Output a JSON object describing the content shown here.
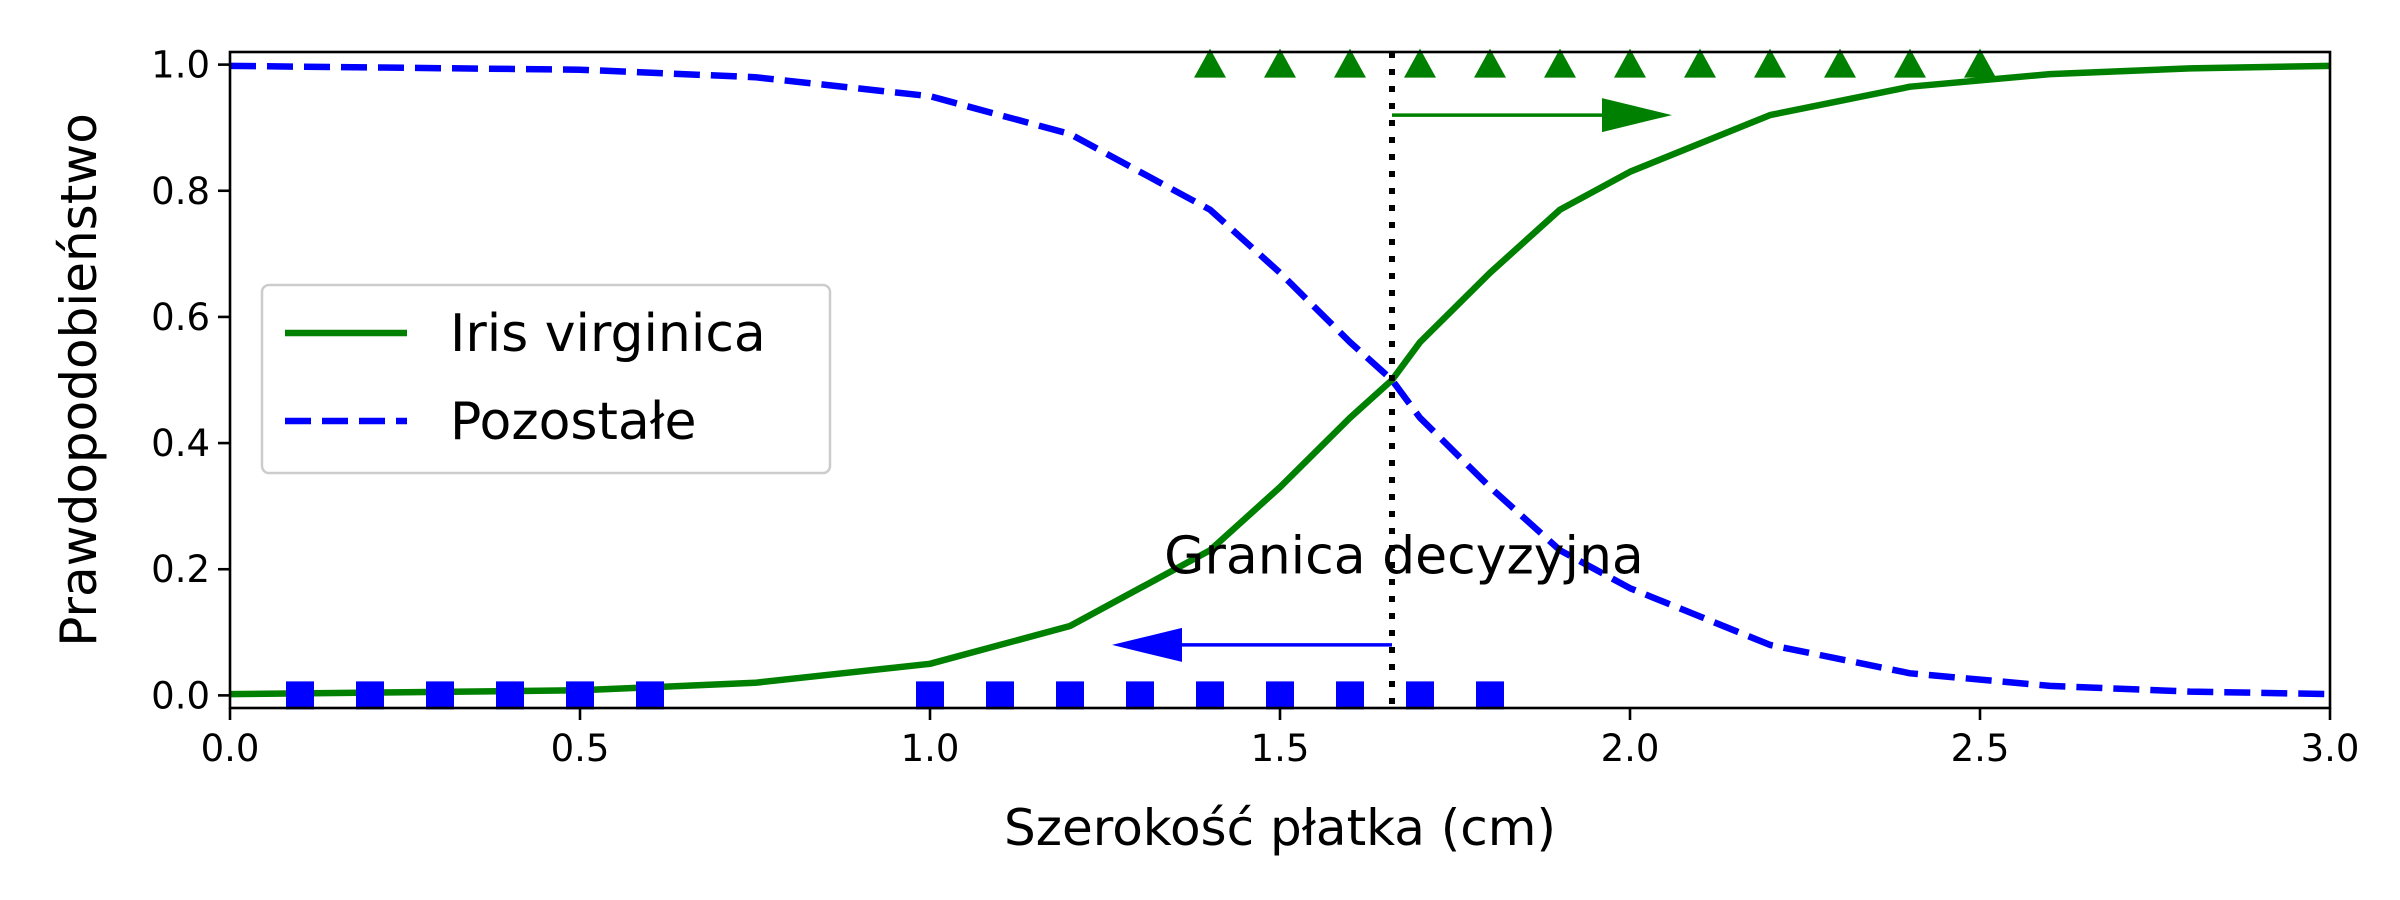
{
  "chart_data": {
    "type": "line",
    "xlabel": "Szerokość płatka (cm)",
    "ylabel": "Prawdopodobieństwo",
    "xlim": [
      0,
      3
    ],
    "ylim": [
      -0.02,
      1.02
    ],
    "xticks": [
      0.0,
      0.5,
      1.0,
      1.5,
      2.0,
      2.5,
      3.0
    ],
    "xtick_labels": [
      "0.0",
      "0.5",
      "1.0",
      "1.5",
      "2.0",
      "2.5",
      "3.0"
    ],
    "yticks": [
      0.0,
      0.2,
      0.4,
      0.6,
      0.8,
      1.0
    ],
    "ytick_labels": [
      "0.0",
      "0.2",
      "0.4",
      "0.6",
      "0.8",
      "1.0"
    ],
    "grid": false,
    "legend_position": "center-left",
    "series": [
      {
        "name": "Iris virginica",
        "style": "solid",
        "color": "#008000",
        "x": [
          0.0,
          0.25,
          0.5,
          0.75,
          1.0,
          1.2,
          1.4,
          1.5,
          1.6,
          1.66,
          1.7,
          1.8,
          1.9,
          2.0,
          2.2,
          2.4,
          2.6,
          2.8,
          3.0
        ],
        "y": [
          0.002,
          0.005,
          0.008,
          0.02,
          0.05,
          0.11,
          0.23,
          0.33,
          0.44,
          0.5,
          0.56,
          0.67,
          0.77,
          0.83,
          0.92,
          0.965,
          0.985,
          0.994,
          0.998
        ]
      },
      {
        "name": "Pozostałe",
        "style": "dashed",
        "color": "#0000ff",
        "x": [
          0.0,
          0.25,
          0.5,
          0.75,
          1.0,
          1.2,
          1.4,
          1.5,
          1.6,
          1.66,
          1.7,
          1.8,
          1.9,
          2.0,
          2.2,
          2.4,
          2.6,
          2.8,
          3.0
        ],
        "y": [
          0.998,
          0.995,
          0.992,
          0.98,
          0.95,
          0.89,
          0.77,
          0.67,
          0.56,
          0.5,
          0.44,
          0.33,
          0.23,
          0.17,
          0.08,
          0.035,
          0.015,
          0.006,
          0.002
        ]
      }
    ],
    "markers": [
      {
        "label": "virginica-samples",
        "shape": "triangle",
        "color": "#008000",
        "x": [
          1.4,
          1.5,
          1.6,
          1.7,
          1.8,
          1.9,
          2.0,
          2.1,
          2.2,
          2.3,
          2.4,
          2.5
        ],
        "y": 1.0
      },
      {
        "label": "other-samples",
        "shape": "square",
        "color": "#0000ff",
        "x": [
          0.1,
          0.2,
          0.3,
          0.4,
          0.5,
          0.6,
          1.0,
          1.1,
          1.2,
          1.3,
          1.4,
          1.5,
          1.6,
          1.7,
          1.8
        ],
        "y": 0.0
      }
    ],
    "decision_boundary": {
      "x": 1.66,
      "style": "dotted",
      "color": "#000000"
    },
    "annotations": [
      {
        "text": "Granica decyzyjna",
        "x": 1.66,
        "y": 0.22
      }
    ],
    "arrows": [
      {
        "name": "arrow-right-virginica",
        "x_from": 1.66,
        "x_to": 2.06,
        "y": 0.92,
        "color": "#008000"
      },
      {
        "name": "arrow-left-other",
        "x_from": 1.66,
        "x_to": 1.26,
        "y": 0.08,
        "color": "#0000ff"
      }
    ]
  }
}
